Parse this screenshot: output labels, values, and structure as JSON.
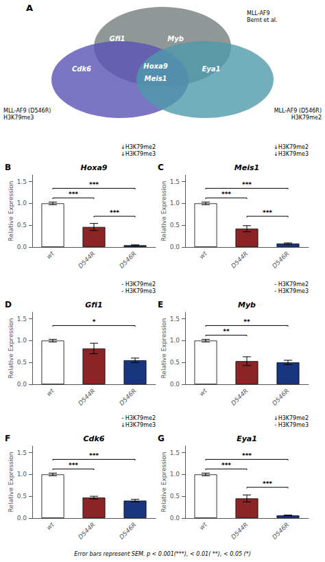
{
  "chart_data": [
    {
      "type": "venn",
      "label": "A",
      "sets": [
        {
          "name": "MLL-AF9\nBernt et al.",
          "color": "#737d7d",
          "genes": [
            "Gfi1",
            "Myb",
            "Eya1",
            "Hoxa9",
            "Meis1"
          ]
        },
        {
          "name": "MLL-AF9 (D546R)\nH3K79me3",
          "color": "#5a52b5",
          "genes": [
            "Cdk6",
            "Hoxa9",
            "Meis1"
          ]
        },
        {
          "name": "MLL-AF9 (D546R)\nH3K79me2",
          "color": "#4f9aab",
          "genes": [
            "Eya1",
            "Hoxa9",
            "Meis1"
          ]
        }
      ]
    },
    {
      "type": "bar",
      "label": "B",
      "title": "Hoxa9",
      "annotation": "↓H3K79me2\n↓H3K79me3",
      "categories": [
        "wt",
        "D544R",
        "D546R"
      ],
      "values": [
        1.0,
        0.46,
        0.04
      ],
      "errors": [
        0.03,
        0.08,
        0.01
      ],
      "colors": [
        "white",
        "#8b2525",
        "#1a3580"
      ],
      "ylabel": "Relative Expression",
      "ylim": [
        0,
        1.65
      ],
      "yticks": [
        {
          "value": 0.0,
          "label": "0.0"
        },
        0.5,
        {
          "value": 1.0,
          "label": "1.0"
        },
        1.5
      ],
      "grid": false,
      "significance": [
        {
          "from": "wt",
          "to": "D544R",
          "y": 1.1,
          "text": "***"
        },
        {
          "from": "wt",
          "to": "D546R",
          "y": 1.32,
          "text": "***"
        },
        {
          "from": "D544R",
          "to": "D546R",
          "y": 0.68,
          "text": "***"
        }
      ]
    },
    {
      "type": "bar",
      "label": "C",
      "title": "Meis1",
      "annotation": "↓H3K79me2\n↓H3K79me3",
      "categories": [
        "wt",
        "D544R",
        "D546R"
      ],
      "values": [
        1.0,
        0.42,
        0.08
      ],
      "errors": [
        0.03,
        0.07,
        0.015
      ],
      "colors": [
        "white",
        "#8b2525",
        "#1a3580"
      ],
      "ylabel": "Relative Expression",
      "ylim": [
        0,
        1.65
      ],
      "yticks": [
        {
          "value": 0.0,
          "label": "0.0"
        },
        0.5,
        {
          "value": 1.0,
          "label": "1.0"
        },
        1.5
      ],
      "grid": false,
      "significance": [
        {
          "from": "wt",
          "to": "D544R",
          "y": 1.1,
          "text": "***"
        },
        {
          "from": "wt",
          "to": "D546R",
          "y": 1.32,
          "text": "***"
        },
        {
          "from": "D544R",
          "to": "D546R",
          "y": 0.68,
          "text": "***"
        }
      ]
    },
    {
      "type": "bar",
      "label": "D",
      "title": "Gfi1",
      "annotation": "- H3K79me2\n- H3K79me3",
      "categories": [
        "wt",
        "D544R",
        "D546R"
      ],
      "values": [
        1.0,
        0.82,
        0.55
      ],
      "errors": [
        0.03,
        0.12,
        0.05
      ],
      "colors": [
        "white",
        "#8b2525",
        "#1a3580"
      ],
      "ylabel": "Relative Expression",
      "ylim": [
        0,
        1.65
      ],
      "yticks": [
        {
          "value": 0.0,
          "label": "0.0"
        },
        0.5,
        {
          "value": 1.0,
          "label": "1.0"
        },
        1.5
      ],
      "grid": false,
      "significance": [
        {
          "from": "wt",
          "to": "D546R",
          "y": 1.32,
          "text": "*"
        }
      ]
    },
    {
      "type": "bar",
      "label": "E",
      "title": "Myb",
      "annotation": "- H3K79me2\n- H3K79me3",
      "categories": [
        "wt",
        "D544R",
        "D546R"
      ],
      "values": [
        1.0,
        0.53,
        0.5
      ],
      "errors": [
        0.03,
        0.1,
        0.05
      ],
      "colors": [
        "white",
        "#8b2525",
        "#1a3580"
      ],
      "ylabel": "Relative Expression",
      "ylim": [
        0,
        1.65
      ],
      "yticks": [
        {
          "value": 0.0,
          "label": "0.0"
        },
        0.5,
        {
          "value": 1.0,
          "label": "1.0"
        },
        1.5
      ],
      "grid": false,
      "significance": [
        {
          "from": "wt",
          "to": "D544R",
          "y": 1.1,
          "text": "**"
        },
        {
          "from": "wt",
          "to": "D546R",
          "y": 1.32,
          "text": "**"
        }
      ]
    },
    {
      "type": "bar",
      "label": "F",
      "title": "Cdk6",
      "annotation": "- H3K79me2\n↓H3K79me3",
      "categories": [
        "wt",
        "D544R",
        "D546R"
      ],
      "values": [
        1.0,
        0.47,
        0.4
      ],
      "errors": [
        0.03,
        0.03,
        0.03
      ],
      "colors": [
        "white",
        "#8b2525",
        "#1a3580"
      ],
      "ylabel": "Relative Expression",
      "ylim": [
        0,
        1.65
      ],
      "yticks": [
        {
          "value": 0.0,
          "label": "0.0"
        },
        0.5,
        {
          "value": 1.0,
          "label": "1.0"
        },
        1.5
      ],
      "grid": false,
      "significance": [
        {
          "from": "wt",
          "to": "D544R",
          "y": 1.1,
          "text": "***"
        },
        {
          "from": "wt",
          "to": "D546R",
          "y": 1.32,
          "text": "***"
        }
      ]
    },
    {
      "type": "bar",
      "label": "G",
      "title": "Eya1",
      "annotation": "↓H3K79me2\n- H3K79me3",
      "categories": [
        "wt",
        "D544R",
        "D546R"
      ],
      "values": [
        1.0,
        0.45,
        0.06
      ],
      "errors": [
        0.03,
        0.08,
        0.01
      ],
      "colors": [
        "white",
        "#8b2525",
        "#1a3580"
      ],
      "ylabel": "Relative Expression",
      "ylim": [
        0,
        1.65
      ],
      "yticks": [
        {
          "value": 0.0,
          "label": "0.0"
        },
        0.5,
        {
          "value": 1.0,
          "label": "1.0"
        },
        1.5
      ],
      "grid": false,
      "significance": [
        {
          "from": "wt",
          "to": "D544R",
          "y": 1.1,
          "text": "***"
        },
        {
          "from": "wt",
          "to": "D546R",
          "y": 1.32,
          "text": "***"
        },
        {
          "from": "D544R",
          "to": "D546R",
          "y": 0.68,
          "text": "***"
        }
      ]
    }
  ],
  "footer": "Error bars represent SEM. p < 0.001(***), < 0.01( **), < 0.05 (*)"
}
